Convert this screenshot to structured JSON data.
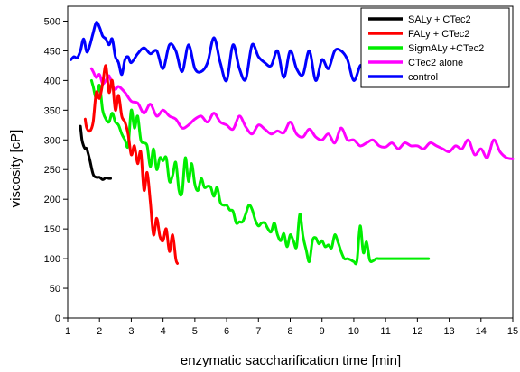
{
  "chart_data": {
    "type": "line",
    "xlabel": "enzymatic saccharification time [min]",
    "ylabel": "viscosity [cP]",
    "xlim": [
      1,
      15
    ],
    "ylim": [
      0,
      525
    ],
    "xticks": [
      1,
      2,
      3,
      4,
      5,
      6,
      7,
      8,
      9,
      10,
      11,
      12,
      13,
      14,
      15
    ],
    "yticks": [
      0,
      50,
      100,
      150,
      200,
      250,
      300,
      350,
      400,
      450,
      500
    ],
    "grid": false,
    "legend_position": "top-right",
    "series": [
      {
        "name": "SALy + CTec2",
        "color": "#000000",
        "x": [
          1.4,
          1.45,
          1.5,
          1.55,
          1.6,
          1.7,
          1.8,
          1.9,
          2.0,
          2.1,
          2.2,
          2.3,
          2.35
        ],
        "y": [
          323,
          300,
          290,
          285,
          285,
          265,
          242,
          237,
          237,
          233,
          236,
          235,
          235
        ]
      },
      {
        "name": "FALy + CTec2",
        "color": "#ff0000",
        "x": [
          1.55,
          1.6,
          1.7,
          1.8,
          1.9,
          2.0,
          2.1,
          2.2,
          2.3,
          2.4,
          2.5,
          2.6,
          2.7,
          2.8,
          2.9,
          3.0,
          3.1,
          3.2,
          3.3,
          3.4,
          3.5,
          3.6,
          3.7,
          3.8,
          3.9,
          4.0,
          4.1,
          4.2,
          4.3,
          4.4,
          4.45
        ],
        "y": [
          335,
          320,
          315,
          330,
          380,
          370,
          395,
          425,
          380,
          400,
          350,
          375,
          340,
          330,
          310,
          275,
          290,
          260,
          280,
          215,
          245,
          195,
          140,
          168,
          138,
          130,
          150,
          112,
          140,
          100,
          92
        ]
      },
      {
        "name": "SigmALy +CTec2",
        "color": "#00ee00",
        "x": [
          1.75,
          1.8,
          1.9,
          2.0,
          2.1,
          2.2,
          2.3,
          2.4,
          2.5,
          2.6,
          2.7,
          2.8,
          2.9,
          3.0,
          3.1,
          3.2,
          3.3,
          3.4,
          3.5,
          3.6,
          3.7,
          3.8,
          3.9,
          4.0,
          4.1,
          4.2,
          4.3,
          4.4,
          4.5,
          4.6,
          4.7,
          4.8,
          4.9,
          5.0,
          5.1,
          5.2,
          5.3,
          5.4,
          5.5,
          5.6,
          5.7,
          5.8,
          5.9,
          6.0,
          6.1,
          6.2,
          6.3,
          6.4,
          6.5,
          6.6,
          6.7,
          6.8,
          6.9,
          7.0,
          7.1,
          7.2,
          7.3,
          7.4,
          7.5,
          7.6,
          7.7,
          7.8,
          7.9,
          8.0,
          8.1,
          8.2,
          8.3,
          8.4,
          8.5,
          8.6,
          8.7,
          8.8,
          8.9,
          9.0,
          9.1,
          9.2,
          9.3,
          9.4,
          9.5,
          9.6,
          9.7,
          9.8,
          9.9,
          10.0,
          10.1,
          10.2,
          10.3,
          10.4,
          10.5,
          10.6,
          10.7,
          10.8,
          11.0,
          11.5,
          12.0,
          12.35
        ],
        "y": [
          400,
          390,
          370,
          392,
          350,
          335,
          330,
          345,
          330,
          325,
          310,
          300,
          290,
          350,
          320,
          340,
          300,
          295,
          290,
          255,
          285,
          250,
          270,
          265,
          270,
          230,
          240,
          262,
          215,
          212,
          270,
          230,
          260,
          225,
          215,
          235,
          220,
          222,
          220,
          205,
          220,
          195,
          190,
          190,
          182,
          180,
          160,
          162,
          162,
          175,
          190,
          183,
          165,
          155,
          160,
          160,
          150,
          145,
          160,
          140,
          130,
          142,
          120,
          140,
          130,
          120,
          175,
          138,
          115,
          95,
          130,
          135,
          125,
          130,
          120,
          123,
          118,
          140,
          128,
          112,
          100,
          100,
          98,
          95,
          96,
          155,
          110,
          128,
          98,
          96,
          100,
          100,
          100,
          100,
          100,
          100
        ]
      },
      {
        "name": "CTec2 alone",
        "color": "#ff00ff",
        "x": [
          1.75,
          1.8,
          1.9,
          2.0,
          2.1,
          2.2,
          2.3,
          2.4,
          2.5,
          2.6,
          2.8,
          3.0,
          3.2,
          3.4,
          3.6,
          3.8,
          4.0,
          4.2,
          4.4,
          4.6,
          4.8,
          5.0,
          5.2,
          5.4,
          5.6,
          5.8,
          6.0,
          6.2,
          6.4,
          6.6,
          6.8,
          7.0,
          7.2,
          7.4,
          7.6,
          7.8,
          8.0,
          8.2,
          8.4,
          8.6,
          8.8,
          9.0,
          9.2,
          9.4,
          9.6,
          9.8,
          10.0,
          10.2,
          10.4,
          10.6,
          10.8,
          11.0,
          11.2,
          11.4,
          11.6,
          11.8,
          12.0,
          12.2,
          12.4,
          12.6,
          12.8,
          13.0,
          13.2,
          13.4,
          13.6,
          13.8,
          14.0,
          14.2,
          14.4,
          14.6,
          14.8,
          15.0
        ],
        "y": [
          420,
          415,
          405,
          410,
          395,
          400,
          408,
          393,
          385,
          390,
          380,
          365,
          362,
          345,
          360,
          340,
          350,
          340,
          335,
          320,
          325,
          335,
          340,
          330,
          345,
          330,
          325,
          318,
          340,
          322,
          310,
          325,
          318,
          310,
          315,
          312,
          330,
          310,
          305,
          318,
          305,
          300,
          310,
          295,
          320,
          300,
          300,
          290,
          295,
          300,
          290,
          288,
          295,
          285,
          295,
          290,
          290,
          285,
          295,
          290,
          285,
          280,
          290,
          285,
          300,
          275,
          285,
          270,
          300,
          280,
          270,
          268
        ]
      },
      {
        "name": "control",
        "color": "#0000ff",
        "x": [
          1.1,
          1.2,
          1.3,
          1.4,
          1.5,
          1.6,
          1.7,
          1.8,
          1.9,
          2.0,
          2.1,
          2.2,
          2.3,
          2.4,
          2.5,
          2.6,
          2.7,
          2.8,
          2.9,
          3.0,
          3.2,
          3.4,
          3.6,
          3.8,
          4.0,
          4.2,
          4.4,
          4.6,
          4.8,
          5.0,
          5.2,
          5.4,
          5.6,
          5.8,
          6.0,
          6.2,
          6.4,
          6.6,
          6.8,
          7.0,
          7.2,
          7.4,
          7.6,
          7.8,
          8.0,
          8.2,
          8.4,
          8.6,
          8.8,
          9.0,
          9.2,
          9.4,
          9.6,
          9.8,
          10.0,
          10.2,
          10.3
        ],
        "y": [
          435,
          440,
          438,
          450,
          470,
          448,
          460,
          480,
          498,
          490,
          475,
          470,
          460,
          470,
          440,
          430,
          410,
          435,
          440,
          430,
          445,
          455,
          445,
          450,
          420,
          460,
          450,
          415,
          460,
          420,
          415,
          430,
          472,
          430,
          400,
          460,
          420,
          402,
          460,
          440,
          430,
          425,
          450,
          405,
          450,
          420,
          410,
          450,
          400,
          435,
          420,
          450,
          450,
          435,
          400,
          425,
          420
        ]
      }
    ]
  }
}
